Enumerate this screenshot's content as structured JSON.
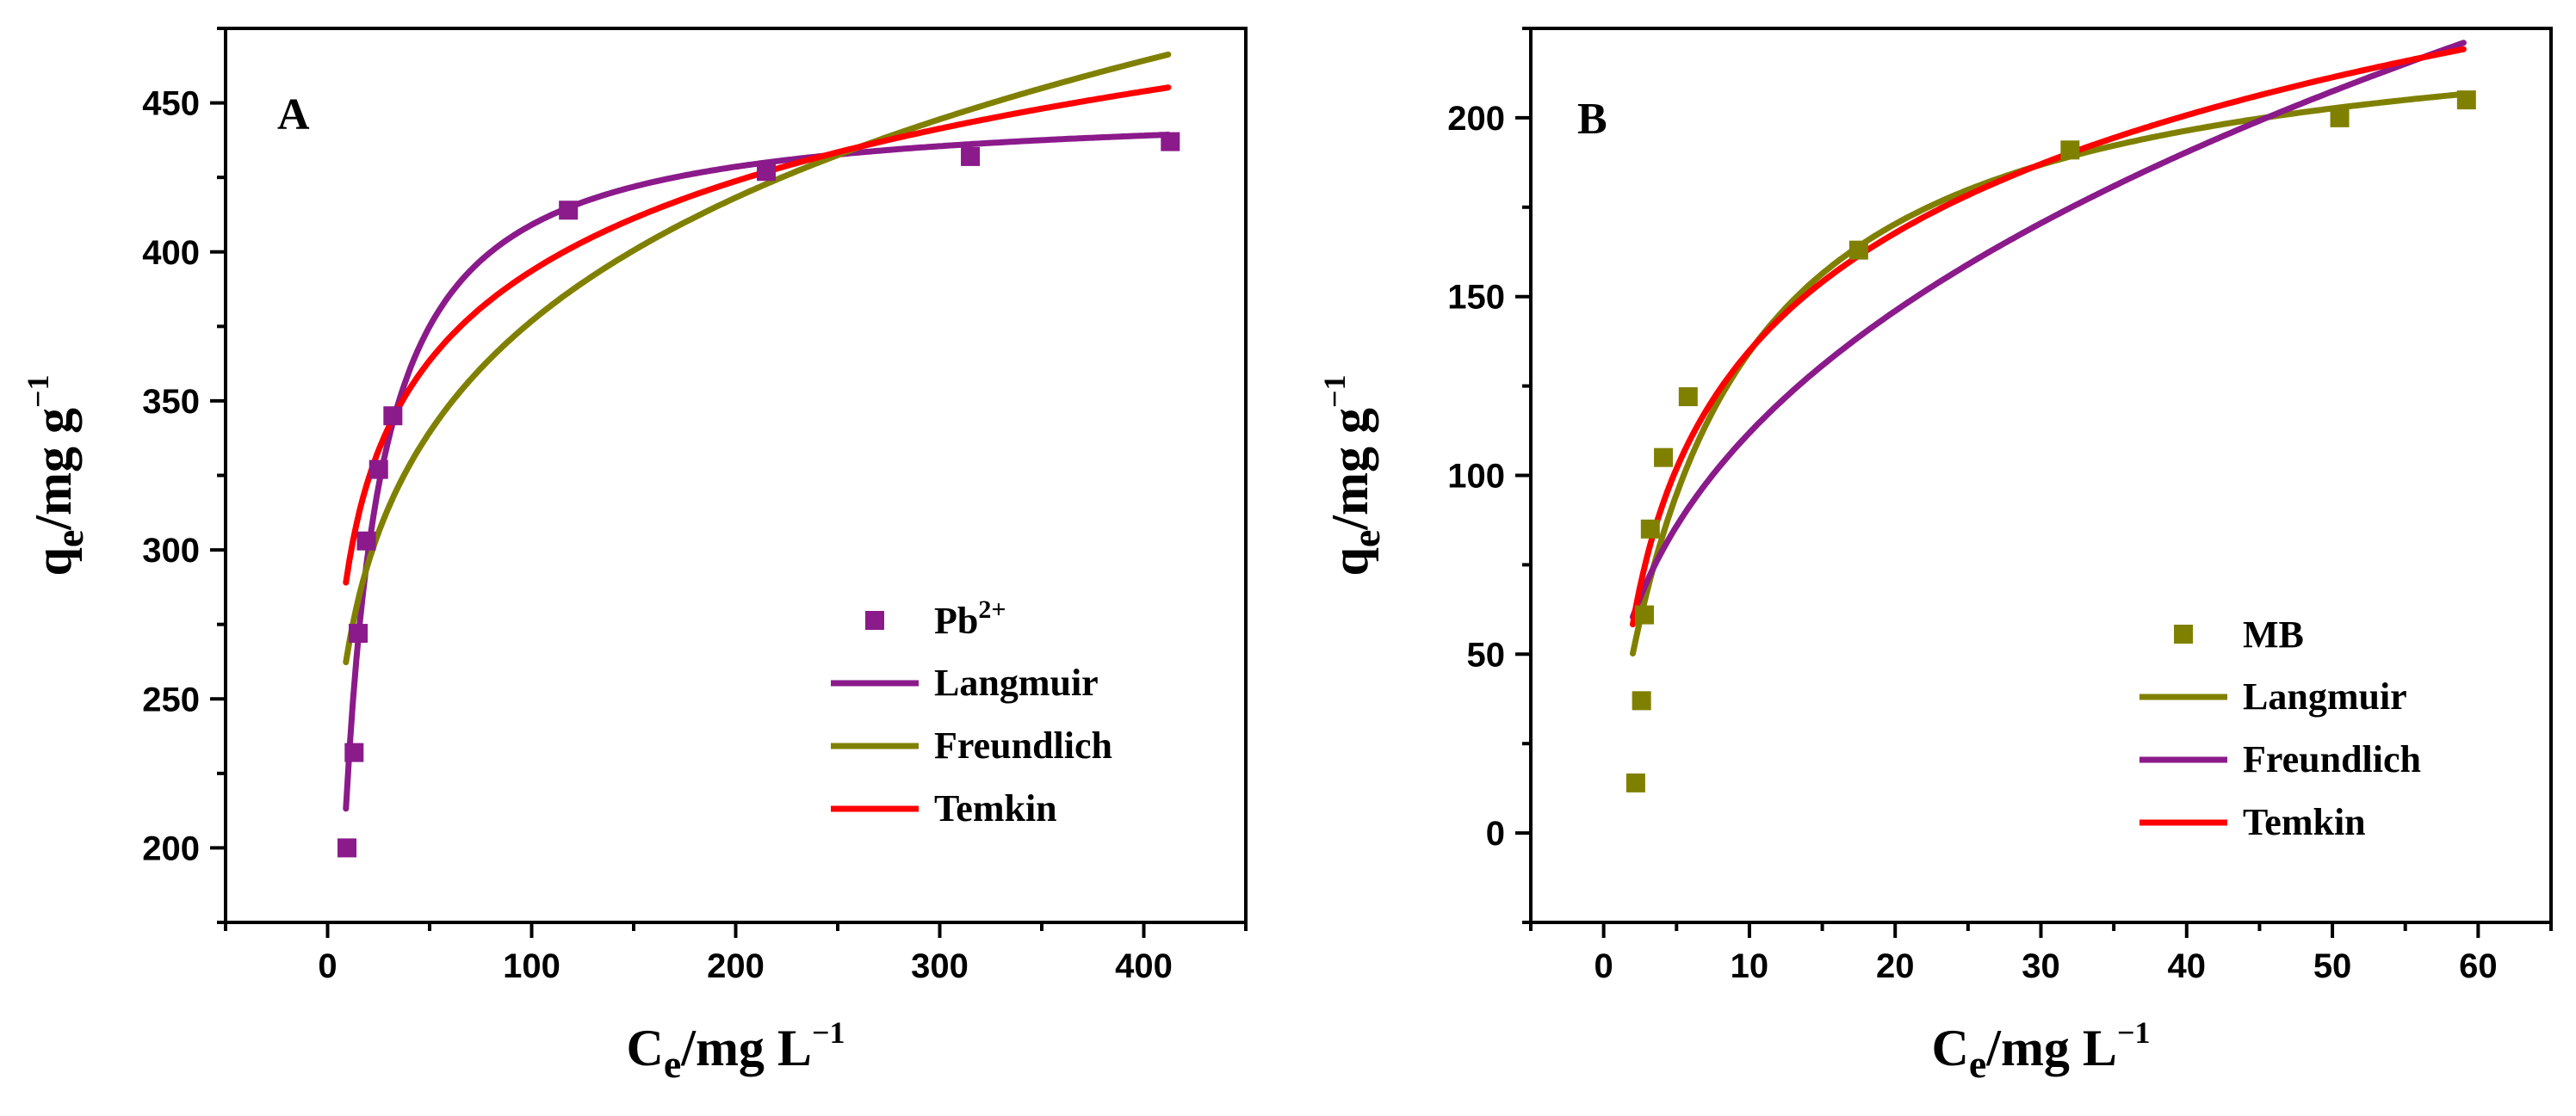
{
  "chart_data": [
    {
      "type": "scatter",
      "panel_label": "A",
      "xlabel": {
        "main": "C",
        "sub": "e",
        "rest": "/mg L",
        "sup": "−1"
      },
      "ylabel": {
        "main": "q",
        "sub": "e",
        "rest": "/mg g",
        "sup": "−1"
      },
      "xlim": [
        -50,
        450
      ],
      "ylim": [
        175,
        475
      ],
      "xticks": [
        0,
        100,
        200,
        300,
        400
      ],
      "yticks": [
        200,
        250,
        300,
        350,
        400,
        450
      ],
      "points_name": "Pb",
      "points_name_sup": "2+",
      "points_color": "#8B1A8B",
      "points": [
        {
          "x": 9.5,
          "y": 200
        },
        {
          "x": 13,
          "y": 232
        },
        {
          "x": 15,
          "y": 272
        },
        {
          "x": 19,
          "y": 303
        },
        {
          "x": 25,
          "y": 327
        },
        {
          "x": 32,
          "y": 345
        },
        {
          "x": 118,
          "y": 414
        },
        {
          "x": 215,
          "y": 427
        },
        {
          "x": 315,
          "y": 432
        },
        {
          "x": 413,
          "y": 437
        }
      ],
      "series": [
        {
          "name": "Langmuir",
          "color": "#8B1A8B",
          "model": "langmuir",
          "params": {
            "qm": 450,
            "k": 0.1
          },
          "x_range": [
            9,
            412
          ]
        },
        {
          "name": "Freundlich",
          "color": "#808000",
          "model": "freundlich",
          "params": {
            "k": 188.5,
            "n": 0.1504
          },
          "x_range": [
            9,
            412
          ]
        },
        {
          "name": "Temkin",
          "color": "#FF0000",
          "model": "temkin",
          "params": {
            "a": 193.54,
            "b": 43.45
          },
          "x_range": [
            9,
            412
          ]
        }
      ],
      "legend_position": "bottom-right"
    },
    {
      "type": "scatter",
      "panel_label": "B",
      "xlabel": {
        "main": "C",
        "sub": "e",
        "rest": "/mg L",
        "sup": "−1"
      },
      "ylabel": {
        "main": "q",
        "sub": "e",
        "rest": "/mg g",
        "sup": "−1"
      },
      "xlim": [
        -5,
        65
      ],
      "ylim": [
        -25,
        225
      ],
      "xticks": [
        0,
        10,
        20,
        30,
        40,
        50,
        60
      ],
      "yticks": [
        0,
        50,
        100,
        150,
        200
      ],
      "points_name": "MB",
      "points_name_sup": "",
      "points_color": "#808000",
      "points": [
        {
          "x": 2.2,
          "y": 14
        },
        {
          "x": 2.6,
          "y": 37
        },
        {
          "x": 2.8,
          "y": 61
        },
        {
          "x": 3.2,
          "y": 85
        },
        {
          "x": 4.1,
          "y": 105
        },
        {
          "x": 5.8,
          "y": 122
        },
        {
          "x": 17.5,
          "y": 163
        },
        {
          "x": 32,
          "y": 191
        },
        {
          "x": 50.5,
          "y": 200
        },
        {
          "x": 59.2,
          "y": 205
        }
      ],
      "series": [
        {
          "name": "Langmuir",
          "color": "#808000",
          "model": "langmuir",
          "params": {
            "qm": 232,
            "k": 0.138
          },
          "x_range": [
            2,
            59
          ]
        },
        {
          "name": "Freundlich",
          "color": "#8B1A8B",
          "model": "freundlich",
          "params": {
            "k": 46.3,
            "n": 0.3833
          },
          "x_range": [
            2,
            59
          ]
        },
        {
          "name": "Temkin",
          "color": "#FF0000",
          "model": "temkin",
          "params": {
            "a": 25.42,
            "b": 47.52
          },
          "x_range": [
            2,
            59
          ]
        }
      ],
      "legend_position": "bottom-right"
    }
  ]
}
